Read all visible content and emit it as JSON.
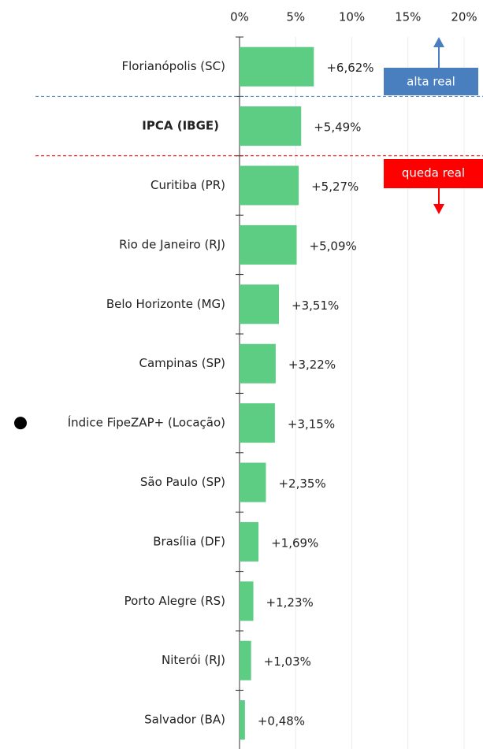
{
  "chart_data": {
    "type": "barh",
    "categories": [
      "Florianópolis (SC)",
      "IPCA (IBGE)",
      "Curitiba (PR)",
      "Rio de Janeiro (RJ)",
      "Belo Horizonte (MG)",
      "Campinas (SP)",
      "Índice FipeZAP+ (Locação)",
      "São Paulo (SP)",
      "Brasília (DF)",
      "Porto Alegre (RS)",
      "Niterói (RJ)",
      "Salvador (BA)"
    ],
    "values": [
      6.62,
      5.49,
      5.27,
      5.09,
      3.51,
      3.22,
      3.15,
      2.35,
      1.69,
      1.23,
      1.03,
      0.48
    ],
    "value_labels": [
      "+6,62%",
      "+5,49%",
      "+5,27%",
      "+5,09%",
      "+3,51%",
      "+3,22%",
      "+3,15%",
      "+2,35%",
      "+1,69%",
      "+1,23%",
      "+1,03%",
      "+0,48%"
    ],
    "color": "#5dcd83",
    "xlim": [
      0,
      20
    ],
    "xticks": [
      {
        "value": 0,
        "label": "0%"
      },
      {
        "value": 5,
        "label": "5%"
      },
      {
        "value": 10,
        "label": "10%"
      },
      {
        "value": 15,
        "label": "15%"
      },
      {
        "value": 20,
        "label": "20%"
      }
    ],
    "grid": true,
    "highlight": 1,
    "marker_index": 6,
    "annotations": [
      {
        "text": "alta real",
        "color": "#4a7fbf"
      },
      {
        "text": "queda real",
        "color": "#ff0000"
      }
    ]
  }
}
